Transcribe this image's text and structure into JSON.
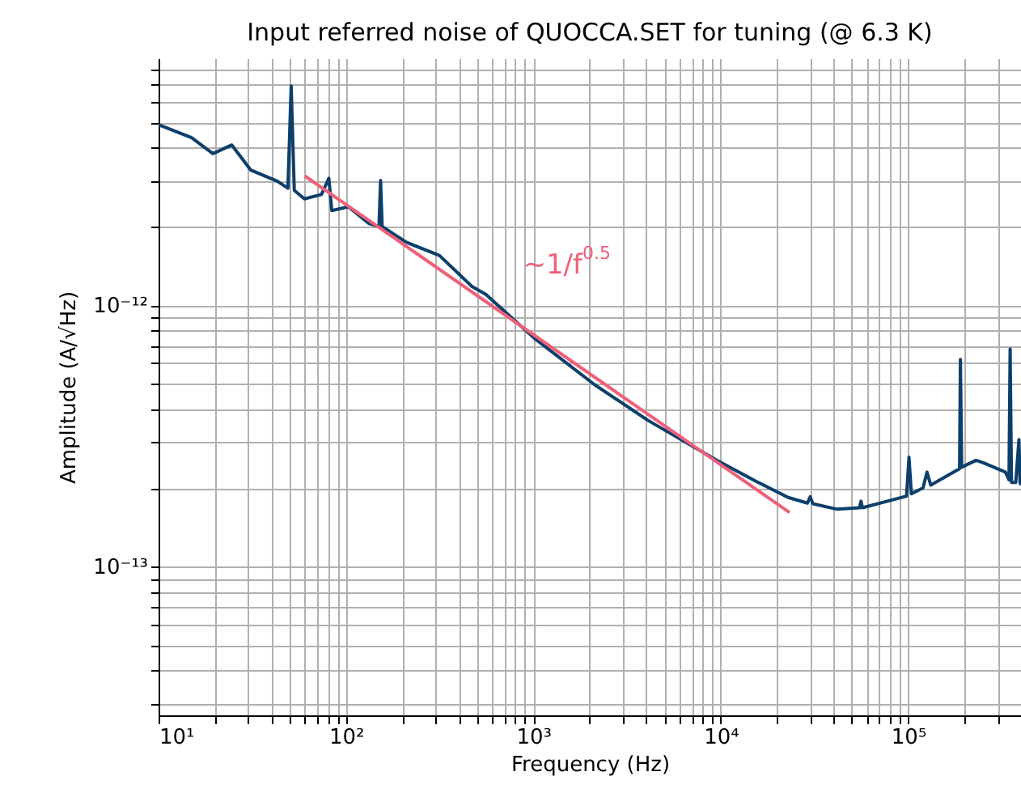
{
  "chart_data": {
    "type": "line",
    "title": "Input referred noise of QUOCCA.SET for tuning (@ 6.3 K)",
    "xlabel": "Frequency (Hz)",
    "ylabel": "Amplitude (A/√Hz)",
    "log": "xy",
    "grid": true,
    "marker": "none",
    "line_style": "solid",
    "xlim": [
      10,
      400000
    ],
    "ylim": [
      2.7e-14,
      8.8e-12
    ],
    "xticks": [
      {
        "value": 10,
        "label": "10¹"
      },
      {
        "value": 20,
        "label": null
      },
      {
        "value": 30,
        "label": null
      },
      {
        "value": 40,
        "label": null
      },
      {
        "value": 50,
        "label": null
      },
      {
        "value": 60,
        "label": null
      },
      {
        "value": 70,
        "label": null
      },
      {
        "value": 80,
        "label": null
      },
      {
        "value": 90,
        "label": null
      },
      {
        "value": 100,
        "label": "10²"
      },
      {
        "value": 200,
        "label": null
      },
      {
        "value": 300,
        "label": null
      },
      {
        "value": 400,
        "label": null
      },
      {
        "value": 500,
        "label": null
      },
      {
        "value": 600,
        "label": null
      },
      {
        "value": 700,
        "label": null
      },
      {
        "value": 800,
        "label": null
      },
      {
        "value": 900,
        "label": null
      },
      {
        "value": 1000,
        "label": "10³"
      },
      {
        "value": 2000,
        "label": null
      },
      {
        "value": 3000,
        "label": null
      },
      {
        "value": 4000,
        "label": null
      },
      {
        "value": 5000,
        "label": null
      },
      {
        "value": 6000,
        "label": null
      },
      {
        "value": 7000,
        "label": null
      },
      {
        "value": 8000,
        "label": null
      },
      {
        "value": 9000,
        "label": null
      },
      {
        "value": 10000,
        "label": "10⁴"
      },
      {
        "value": 20000,
        "label": null
      },
      {
        "value": 30000,
        "label": null
      },
      {
        "value": 40000,
        "label": null
      },
      {
        "value": 50000,
        "label": null
      },
      {
        "value": 60000,
        "label": null
      },
      {
        "value": 70000,
        "label": null
      },
      {
        "value": 80000,
        "label": null
      },
      {
        "value": 90000,
        "label": null
      },
      {
        "value": 100000,
        "label": "10⁵"
      },
      {
        "value": 200000,
        "label": null
      },
      {
        "value": 300000,
        "label": null
      }
    ],
    "yticks": [
      {
        "value": 3e-14,
        "label": null
      },
      {
        "value": 4e-14,
        "label": null
      },
      {
        "value": 5e-14,
        "label": null
      },
      {
        "value": 6e-14,
        "label": null
      },
      {
        "value": 7e-14,
        "label": null
      },
      {
        "value": 8e-14,
        "label": null
      },
      {
        "value": 9e-14,
        "label": null
      },
      {
        "value": 1e-13,
        "label": "10⁻¹³"
      },
      {
        "value": 2e-13,
        "label": null
      },
      {
        "value": 3e-13,
        "label": null
      },
      {
        "value": 4e-13,
        "label": null
      },
      {
        "value": 5e-13,
        "label": null
      },
      {
        "value": 6e-13,
        "label": null
      },
      {
        "value": 7e-13,
        "label": null
      },
      {
        "value": 8e-13,
        "label": null
      },
      {
        "value": 9e-13,
        "label": null
      },
      {
        "value": 1e-12,
        "label": "10⁻¹²"
      },
      {
        "value": 2e-12,
        "label": null
      },
      {
        "value": 3e-12,
        "label": null
      },
      {
        "value": 4e-12,
        "label": null
      },
      {
        "value": 5e-12,
        "label": null
      },
      {
        "value": 6e-12,
        "label": null
      },
      {
        "value": 7e-12,
        "label": null
      },
      {
        "value": 8e-12,
        "label": null
      }
    ],
    "series": [
      {
        "color": "#0d3f6b",
        "x": [
          10,
          15,
          19.5,
          24.6,
          31,
          43,
          49,
          51,
          53,
          60,
          74,
          81,
          84,
          103,
          133,
          150,
          153,
          156,
          210,
          315,
          470,
          557,
          1030,
          2110,
          4080,
          9550,
          15400,
          22900,
          29000,
          30000,
          31000,
          41500,
          55000,
          56000,
          57000,
          98000,
          101000,
          104000,
          120000,
          126000,
          132000,
          188000,
          190000,
          193000,
          230000,
          250000,
          330000,
          345000,
          350000,
          356000,
          375000,
          390000,
          395000,
          400000
        ],
        "values": [
          4.9e-12,
          4.37e-12,
          3.8e-12,
          4.1e-12,
          3.29e-12,
          2.98e-12,
          2.8e-12,
          6.9e-12,
          2.75e-12,
          2.55e-12,
          2.65e-12,
          3.06e-12,
          2.3e-12,
          2.38e-12,
          2.05e-12,
          2e-12,
          3e-12,
          2e-12,
          1.74e-12,
          1.55e-12,
          1.18e-12,
          1.1e-12,
          7.4e-13,
          4.98e-13,
          3.63e-13,
          2.55e-13,
          2.12e-13,
          1.84e-13,
          1.75e-13,
          1.85e-13,
          1.74e-13,
          1.66e-13,
          1.68e-13,
          1.78e-13,
          1.68e-13,
          1.86e-13,
          2.62e-13,
          1.9e-13,
          2e-13,
          2.3e-13,
          2.05e-13,
          2.37e-13,
          6.2e-13,
          2.4e-13,
          2.55e-13,
          2.5e-13,
          2.3e-13,
          2.15e-13,
          6.8e-13,
          2.1e-13,
          2.1e-13,
          3.06e-13,
          2.1e-13,
          2.05e-13
        ]
      },
      {
        "type": "line",
        "color": "#ee6079",
        "x": [
          60.4,
          23300
        ],
        "values": [
          3.12e-12,
          1.61e-13
        ]
      }
    ],
    "annotations": [
      "~1/f$^{0.5}$"
    ]
  }
}
